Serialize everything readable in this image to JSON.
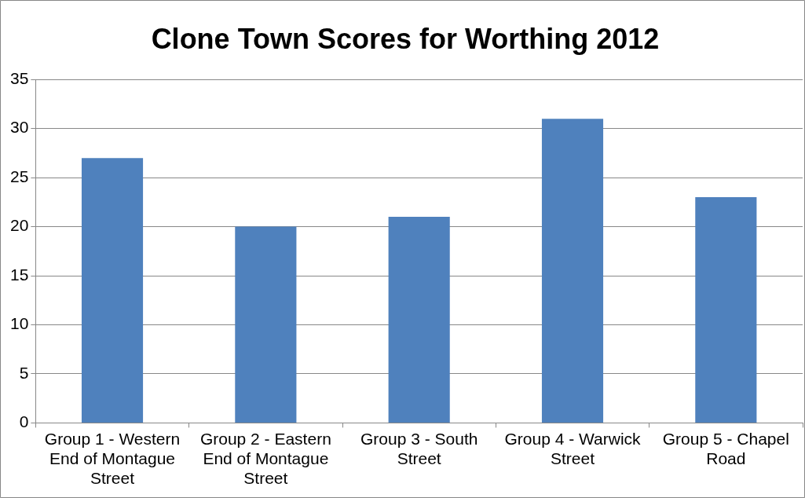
{
  "chart_data": {
    "type": "bar",
    "title": "Clone Town Scores for Worthing 2012",
    "categories": [
      "Group 1 - Western End of Montague Street",
      "Group 2 - Eastern End of Montague Street",
      "Group 3 - South Street",
      "Group 4 - Warwick Street",
      "Group 5 - Chapel Road"
    ],
    "values": [
      27,
      20,
      21,
      31,
      23
    ],
    "color": "#4f81bd",
    "ylim": [
      0,
      35
    ],
    "yticks": [
      0,
      5,
      10,
      15,
      20,
      25,
      30,
      35
    ],
    "grid": "y",
    "legend": false
  }
}
